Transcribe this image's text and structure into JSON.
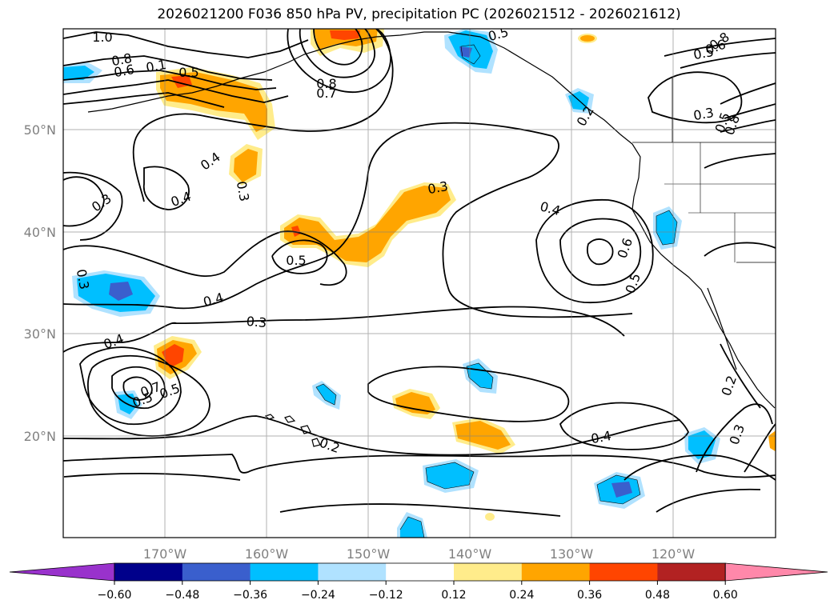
{
  "title": "2026021200 F036 850 hPa PV, precipitation PC (2026021512 - 2026021612)",
  "lat_labels": [
    "50°N",
    "40°N",
    "30°N",
    "20°N"
  ],
  "lon_labels": [
    "170°W",
    "160°W",
    "150°W",
    "140°W",
    "130°W",
    "120°W"
  ],
  "contour_labels": [
    "1.0",
    "0.8",
    "0.6",
    "0.1",
    "0.5",
    "0.8",
    "0.7",
    "0.5",
    "0.2",
    "0.8",
    "0.5",
    "0.6",
    "0.3",
    "0.5",
    "0.8",
    "0.4",
    "0.3",
    "0.4",
    "0.3",
    "0.3",
    "0.4",
    "0.5",
    "0.6",
    "0.5",
    "0.4",
    "0.3",
    "0.3",
    "0.4",
    "0.7",
    "0.5",
    "0.2",
    "0.4",
    "0.2",
    "0.3",
    "0.5"
  ],
  "colorbar": {
    "ticks": [
      "−0.60",
      "−0.48",
      "−0.36",
      "−0.24",
      "−0.12",
      "0.12",
      "0.24",
      "0.36",
      "0.48",
      "0.60"
    ],
    "colors": [
      "#9932cc",
      "#00008b",
      "#3a5fcd",
      "#00bfff",
      "#b0e2ff",
      "#ffffff",
      "#ffec8b",
      "#ffa500",
      "#ff4500",
      "#b22222",
      "#ff88aa"
    ]
  },
  "chart_data": {
    "type": "heatmap",
    "title": "2026021200 F036 850 hPa PV, precipitation PC (2026021512 - 2026021612)",
    "lon_range": [
      -180,
      -110
    ],
    "lat_range": [
      10,
      60
    ],
    "color_levels": [
      -0.6,
      -0.48,
      -0.36,
      -0.24,
      -0.12,
      0.12,
      0.24,
      0.36,
      0.48,
      0.6
    ]
  }
}
